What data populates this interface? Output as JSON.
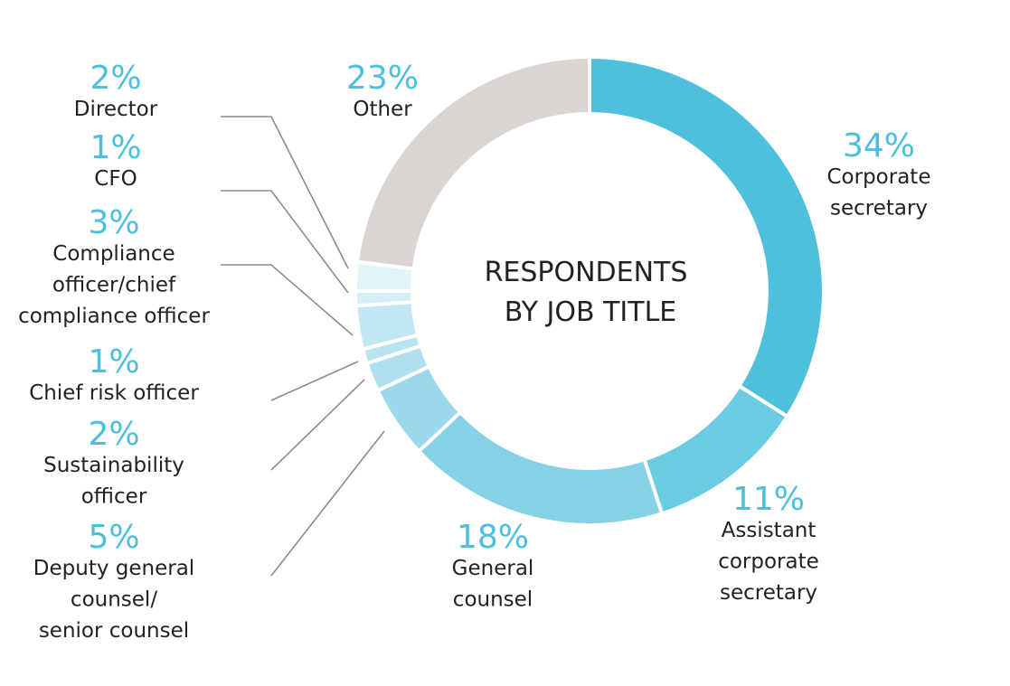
{
  "chart_data": {
    "type": "pie",
    "variant": "donut",
    "title_lines": [
      "RESPONDENTS",
      "BY JOB TITLE"
    ],
    "slices": [
      {
        "label_lines": [
          "Corporate",
          "secretary"
        ],
        "value": 34,
        "value_label": "34%",
        "color": "#4fc0dc"
      },
      {
        "label_lines": [
          "Assistant",
          "corporate",
          "secretary"
        ],
        "value": 11,
        "value_label": "11%",
        "color": "#6acbe1"
      },
      {
        "label_lines": [
          "General",
          "counsel"
        ],
        "value": 18,
        "value_label": "18%",
        "color": "#86d1e6"
      },
      {
        "label_lines": [
          "Deputy general",
          "counsel/",
          "senior counsel"
        ],
        "value": 5,
        "value_label": "5%",
        "color": "#9bd8ea"
      },
      {
        "label_lines": [
          "Sustainability",
          "officer"
        ],
        "value": 2,
        "value_label": "2%",
        "color": "#aedfee"
      },
      {
        "label_lines": [
          "Chief risk officer"
        ],
        "value": 1,
        "value_label": "1%",
        "color": "#b8e3f0"
      },
      {
        "label_lines": [
          "Compliance",
          "officer/chief",
          "compliance officer"
        ],
        "value": 3,
        "value_label": "3%",
        "color": "#c2e7f2"
      },
      {
        "label_lines": [
          "CFO"
        ],
        "value": 1,
        "value_label": "1%",
        "color": "#d4eef6"
      },
      {
        "label_lines": [
          "Director"
        ],
        "value": 2,
        "value_label": "2%",
        "color": "#e2f3f9"
      },
      {
        "label_lines": [
          "Other"
        ],
        "value": 23,
        "value_label": "23%",
        "color": "#d8d5d2"
      }
    ]
  }
}
